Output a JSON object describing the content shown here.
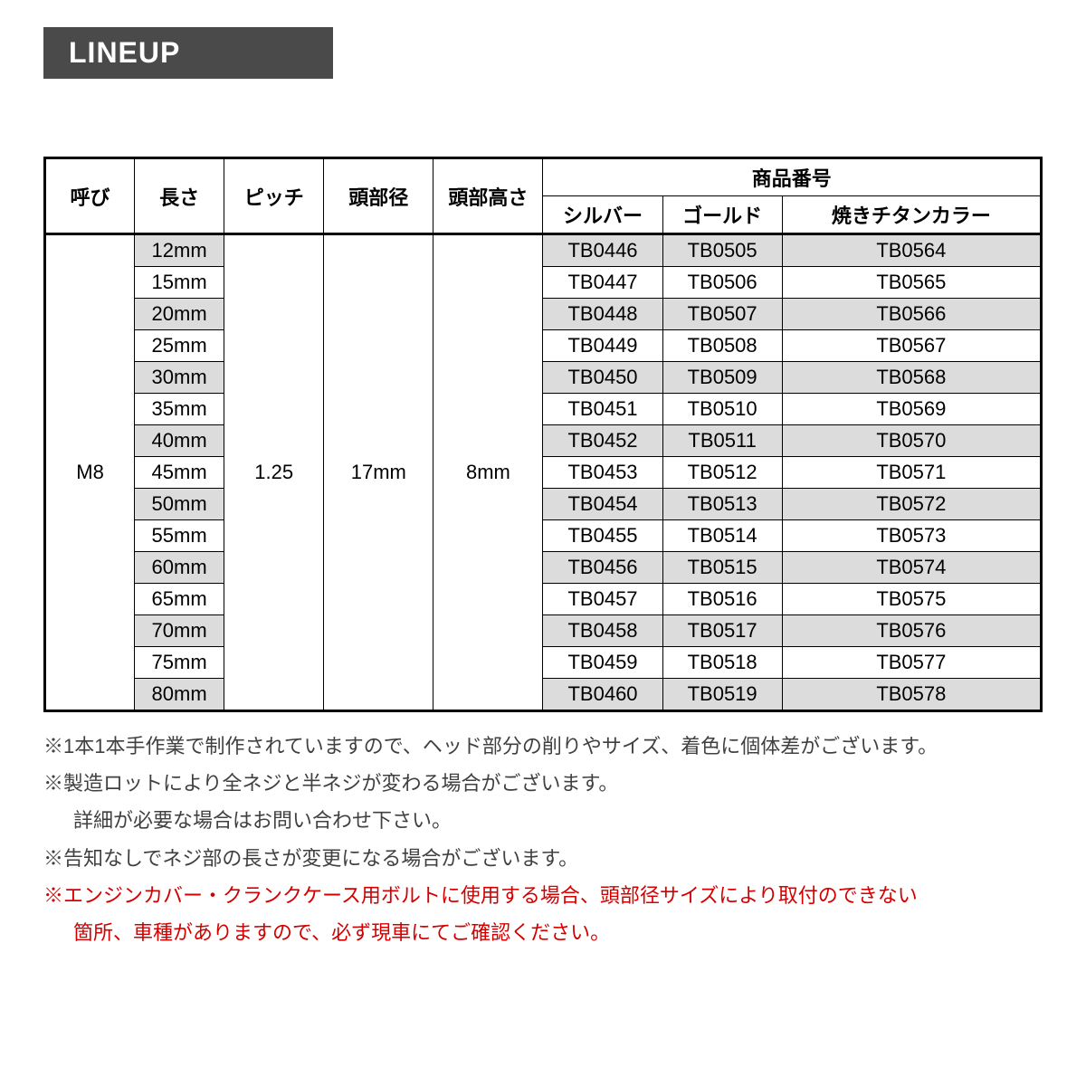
{
  "heading": "LINEUP",
  "table": {
    "columns": {
      "yobi": "呼び",
      "length": "長さ",
      "pitch": "ピッチ",
      "head_dia": "頭部径",
      "head_h": "頭部高さ",
      "product_no": "商品番号",
      "silver": "シルバー",
      "gold": "ゴールド",
      "titanium": "焼きチタンカラー"
    },
    "merged": {
      "yobi": "M8",
      "pitch": "1.25",
      "head_dia": "17mm",
      "head_h": "8mm"
    },
    "rows": [
      {
        "len": "12mm",
        "s": "TB0446",
        "g": "TB0505",
        "t": "TB0564",
        "shade": true
      },
      {
        "len": "15mm",
        "s": "TB0447",
        "g": "TB0506",
        "t": "TB0565",
        "shade": false
      },
      {
        "len": "20mm",
        "s": "TB0448",
        "g": "TB0507",
        "t": "TB0566",
        "shade": true
      },
      {
        "len": "25mm",
        "s": "TB0449",
        "g": "TB0508",
        "t": "TB0567",
        "shade": false
      },
      {
        "len": "30mm",
        "s": "TB0450",
        "g": "TB0509",
        "t": "TB0568",
        "shade": true
      },
      {
        "len": "35mm",
        "s": "TB0451",
        "g": "TB0510",
        "t": "TB0569",
        "shade": false
      },
      {
        "len": "40mm",
        "s": "TB0452",
        "g": "TB0511",
        "t": "TB0570",
        "shade": true
      },
      {
        "len": "45mm",
        "s": "TB0453",
        "g": "TB0512",
        "t": "TB0571",
        "shade": false
      },
      {
        "len": "50mm",
        "s": "TB0454",
        "g": "TB0513",
        "t": "TB0572",
        "shade": true
      },
      {
        "len": "55mm",
        "s": "TB0455",
        "g": "TB0514",
        "t": "TB0573",
        "shade": false
      },
      {
        "len": "60mm",
        "s": "TB0456",
        "g": "TB0515",
        "t": "TB0574",
        "shade": true
      },
      {
        "len": "65mm",
        "s": "TB0457",
        "g": "TB0516",
        "t": "TB0575",
        "shade": false
      },
      {
        "len": "70mm",
        "s": "TB0458",
        "g": "TB0517",
        "t": "TB0576",
        "shade": true
      },
      {
        "len": "75mm",
        "s": "TB0459",
        "g": "TB0518",
        "t": "TB0577",
        "shade": false
      },
      {
        "len": "80mm",
        "s": "TB0460",
        "g": "TB0519",
        "t": "TB0578",
        "shade": true
      }
    ]
  },
  "notes": {
    "n1": "※1本1本手作業で制作されていますので、ヘッド部分の削りやサイズ、着色に個体差がございます。",
    "n2a": "※製造ロットにより全ネジと半ネジが変わる場合がございます。",
    "n2b": "詳細が必要な場合はお問い合わせ下さい。",
    "n3": "※告知なしでネジ部の長さが変更になる場合がございます。",
    "n4a": "※エンジンカバー・クランクケース用ボルトに使用する場合、頭部径サイズにより取付のできない",
    "n4b": "箇所、車種がありますので、必ず現車にてご確認ください。"
  },
  "style": {
    "heading_bg": "#4a4a4a",
    "heading_fg": "#ffffff",
    "border_color": "#000000",
    "shade_color": "#dcdcdc",
    "text_color": "#404040",
    "red": "#d40000",
    "font_size_table": 22,
    "font_size_heading": 32,
    "font_size_notes": 22
  }
}
